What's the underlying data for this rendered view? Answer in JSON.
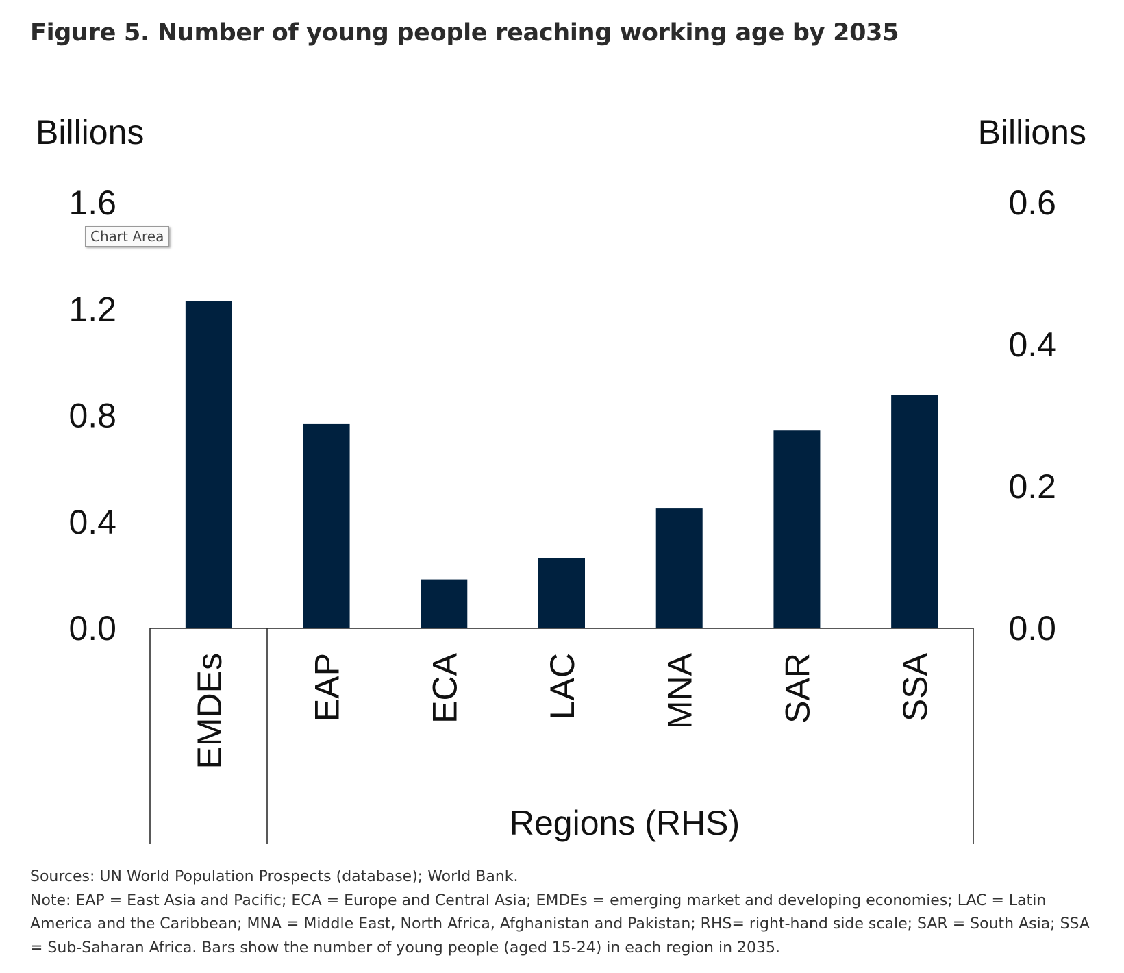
{
  "title": "Figure 5. Number of young people reaching working age by 2035",
  "tooltip": "Chart Area",
  "chart_data": {
    "type": "bar",
    "left_axis_label": "Billions",
    "right_axis_label": "Billions",
    "left_ticks": [
      "0.0",
      "0.4",
      "0.8",
      "1.2",
      "1.6"
    ],
    "right_ticks": [
      "0.0",
      "0.2",
      "0.4",
      "0.6"
    ],
    "left_ylim": [
      0,
      1.6
    ],
    "right_ylim": [
      0,
      0.6
    ],
    "group_label": "Regions (RHS)",
    "bar_color": "#00213f",
    "series": [
      {
        "category": "EMDEs",
        "axis": "left",
        "value": 1.23
      },
      {
        "category": "EAP",
        "axis": "right",
        "value": 0.288
      },
      {
        "category": "ECA",
        "axis": "right",
        "value": 0.069
      },
      {
        "category": "LAC",
        "axis": "right",
        "value": 0.099
      },
      {
        "category": "MNA",
        "axis": "right",
        "value": 0.169
      },
      {
        "category": "SAR",
        "axis": "right",
        "value": 0.279
      },
      {
        "category": "SSA",
        "axis": "right",
        "value": 0.329
      }
    ]
  },
  "notes": {
    "sources": "Sources: UN World Population Prospects (database); World Bank.",
    "note": "Note: EAP = East Asia and Pacific; ECA = Europe and Central Asia; EMDEs = emerging market and developing economies; LAC = Latin America and the Caribbean; MNA = Middle East, North Africa, Afghanistan and Pakistan; RHS= right-hand side scale; SAR = South Asia; SSA = Sub-Saharan Africa. Bars show the number of young people (aged 15-24) in each region in 2035."
  }
}
